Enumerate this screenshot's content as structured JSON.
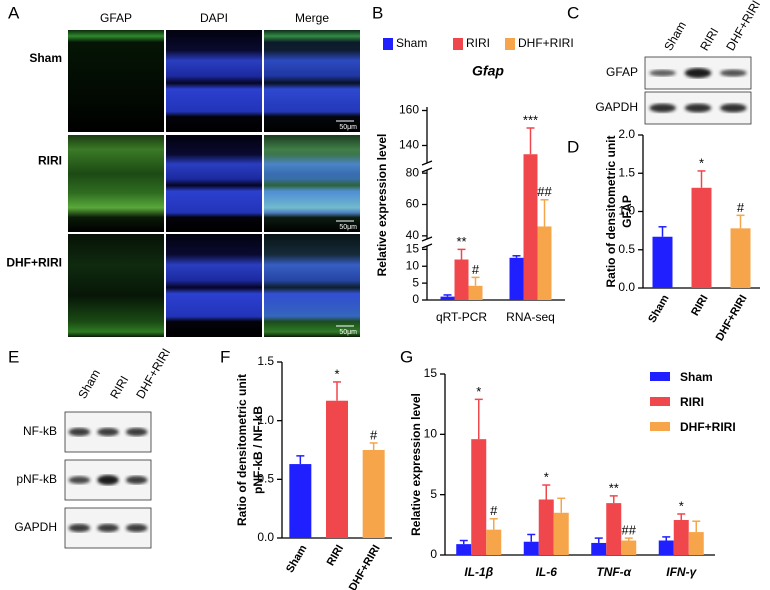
{
  "panel_a": {
    "panel": "A",
    "columns": [
      "GFAP",
      "DAPI",
      "Merge"
    ],
    "rows": [
      "Sham",
      "RIRI",
      "DHF+RIRI"
    ],
    "scale_bar": "50μm"
  },
  "panel_c": {
    "panel": "C",
    "lanes": [
      "Sham",
      "RIRI",
      "DHF+RIRI"
    ],
    "bands": [
      "GFAP",
      "GAPDH"
    ]
  },
  "panel_e": {
    "panel": "E",
    "lanes": [
      "Sham",
      "RIRI",
      "DHF+RIRI"
    ],
    "bands": [
      "NF-kB",
      "pNF-kB",
      "GAPDH"
    ]
  },
  "chart_data": [
    {
      "type": "bar",
      "panel": "B",
      "title": "Gfap",
      "ylabel": [
        "Relative expression level"
      ],
      "legend": "top",
      "categories": [
        "qRT-PCR",
        "RNA-seq"
      ],
      "series": [
        {
          "name": "Sham",
          "color": "#1f1fff",
          "values": [
            1,
            12.5
          ],
          "errors": [
            0.5,
            0.6
          ],
          "annotations": [
            null,
            null
          ]
        },
        {
          "name": "RIRI",
          "color": "#f0474c",
          "values": [
            12,
            135
          ],
          "errors": [
            3,
            15
          ],
          "annotations": [
            "**",
            "***"
          ]
        },
        {
          "name": "DHF+RIRI",
          "color": "#f7a54b",
          "values": [
            4.2,
            46
          ],
          "errors": [
            2.5,
            17
          ],
          "annotations": [
            "#",
            "##"
          ]
        }
      ],
      "ylim": [
        0,
        162
      ],
      "axis_breaks": [
        [
          16,
          38
        ],
        [
          82,
          130
        ]
      ],
      "yticks": [
        0,
        5,
        10,
        15,
        40,
        60,
        80,
        140,
        160
      ]
    },
    {
      "type": "bar",
      "panel": "D",
      "ylabel": [
        "Ratio of densitometric unit",
        "GFAP"
      ],
      "categories": [
        "Sham",
        "RIRI",
        "DHF+RIRI"
      ],
      "colors": [
        "#1f1fff",
        "#f0474c",
        "#f7a54b"
      ],
      "values": [
        0.67,
        1.31,
        0.78
      ],
      "errors": [
        0.13,
        0.22,
        0.17
      ],
      "annotations": [
        null,
        "*",
        "#"
      ],
      "ylim": [
        0,
        2
      ],
      "yticks": [
        {
          "value": 0,
          "label": "0.0"
        },
        0.5,
        {
          "value": 1,
          "label": "1.0"
        },
        1.5,
        {
          "value": 2,
          "label": "2.0"
        }
      ],
      "xtick_rotation": -60
    },
    {
      "type": "bar",
      "panel": "F",
      "ylabel": [
        "Ratio of densitometric unit",
        "pNF-kB / NF-kB"
      ],
      "categories": [
        "Sham",
        "RIRI",
        "DHF+RIRI"
      ],
      "colors": [
        "#1f1fff",
        "#f0474c",
        "#f7a54b"
      ],
      "values": [
        0.63,
        1.17,
        0.75
      ],
      "errors": [
        0.07,
        0.16,
        0.06
      ],
      "annotations": [
        null,
        "*",
        "#"
      ],
      "ylim": [
        0,
        1.5
      ],
      "yticks": [
        {
          "value": 0,
          "label": "0.0"
        },
        0.5,
        {
          "value": 1,
          "label": "1.0"
        },
        1.5
      ],
      "xtick_rotation": -60
    },
    {
      "type": "bar",
      "panel": "G",
      "ylabel": [
        "Relative expression level"
      ],
      "legend": "right",
      "categories": [
        "IL-1β",
        "IL-6",
        "TNF-α",
        "IFN-γ"
      ],
      "series": [
        {
          "name": "Sham",
          "color": "#1f1fff",
          "values": [
            0.9,
            1.1,
            1.0,
            1.2
          ],
          "errors": [
            0.3,
            0.6,
            0.4,
            0.3
          ],
          "annotations": [
            null,
            null,
            null,
            null
          ]
        },
        {
          "name": "RIRI",
          "color": "#f0474c",
          "values": [
            9.6,
            4.6,
            4.3,
            2.9
          ],
          "errors": [
            3.3,
            1.2,
            0.6,
            0.5
          ],
          "annotations": [
            "*",
            "*",
            "**",
            "*"
          ]
        },
        {
          "name": "DHF+RIRI",
          "color": "#f7a54b",
          "values": [
            2.1,
            3.5,
            1.2,
            1.9
          ],
          "errors": [
            0.9,
            1.2,
            0.2,
            0.9
          ],
          "annotations": [
            "#",
            null,
            "##",
            null
          ]
        }
      ],
      "ylim": [
        0,
        15
      ],
      "yticks": [
        0,
        5,
        10,
        15
      ]
    }
  ]
}
